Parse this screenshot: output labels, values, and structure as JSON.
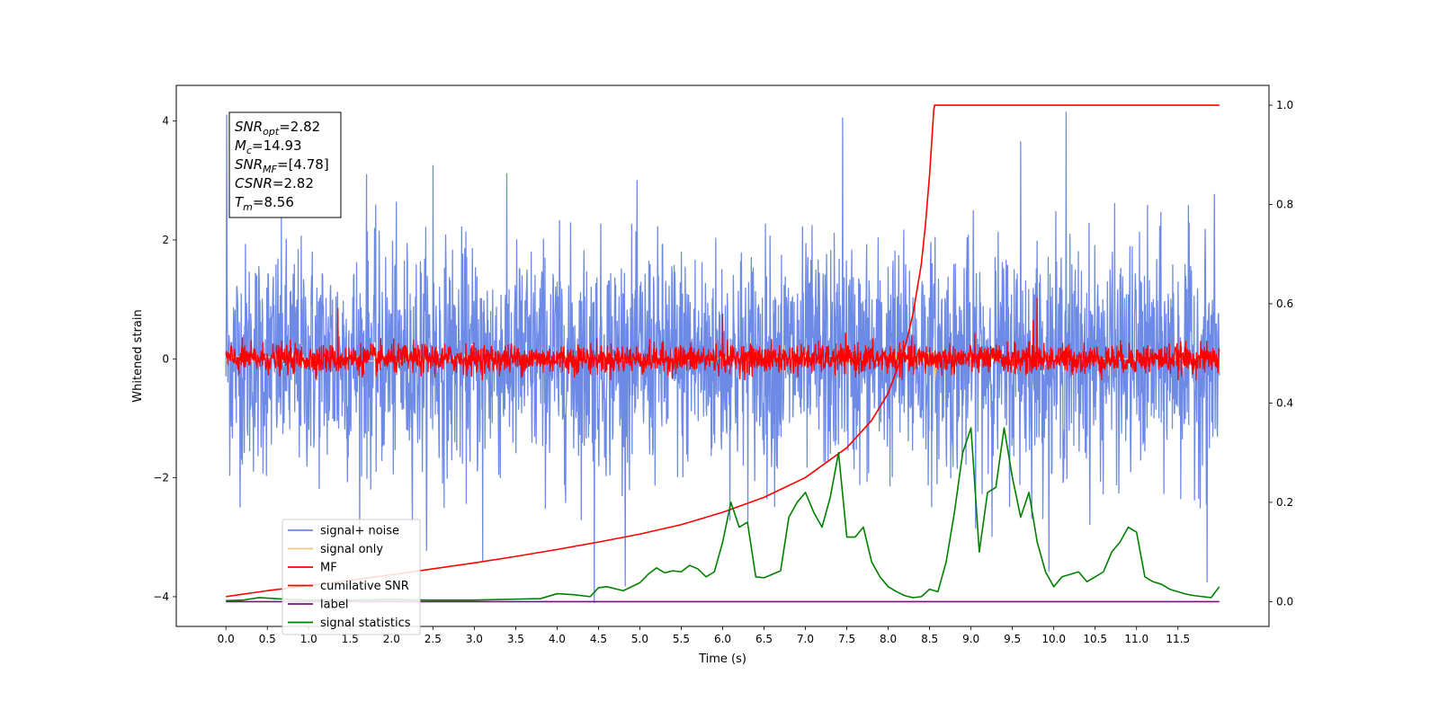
{
  "chart_data": {
    "type": "line",
    "xlabel": "Time (s)",
    "ylabel": "Whitened strain",
    "xlim": [
      -0.6,
      12.6
    ],
    "ylim": [
      -4.5,
      4.6
    ],
    "y2lim": [
      -0.05,
      1.04
    ],
    "x_ticks": [
      "0.0",
      "0.5",
      "1.0",
      "1.5",
      "2.0",
      "2.5",
      "3.0",
      "3.5",
      "4.0",
      "4.5",
      "5.0",
      "5.5",
      "6.0",
      "6.5",
      "7.0",
      "7.5",
      "8.0",
      "8.5",
      "9.0",
      "9.5",
      "10.0",
      "10.5",
      "11.0",
      "11.5"
    ],
    "y_ticks": [
      "4",
      "2",
      "0",
      "−2",
      "−4"
    ],
    "y2_ticks": [
      "1.0",
      "0.8",
      "0.6",
      "0.4",
      "0.2",
      "0.0"
    ],
    "legend_position": "lower-left",
    "annotation": {
      "lines": [
        {
          "base": "SNR",
          "sub": "opt",
          "value": "=2.82"
        },
        {
          "base": "M",
          "sub": "c",
          "value": "=14.93"
        },
        {
          "base": "SNR",
          "sub": "MF",
          "value": "=[4.78]"
        },
        {
          "base": "CSNR",
          "sub": "",
          "value": "=2.82"
        },
        {
          "base": "T",
          "sub": "m",
          "value": "=8.56"
        }
      ]
    },
    "series": [
      {
        "name": "signal+ noise",
        "color": "#6d8ae6",
        "axis": "left",
        "kind": "noise",
        "x_range": [
          0.0,
          12.0
        ],
        "amplitude_std": 0.95,
        "peak_max": 4.15,
        "peak_min": -4.1
      },
      {
        "name": "signal only",
        "color": "#f5c77e",
        "axis": "left",
        "kind": "chirp",
        "x_range": [
          0.0,
          12.0
        ],
        "merger_time": 8.56
      },
      {
        "name": "MF",
        "color": "#ff0000",
        "axis": "left",
        "kind": "noise",
        "x_range": [
          0.0,
          12.0
        ],
        "amplitude_std": 0.12,
        "peak_max": 1.0,
        "peak_min": -0.35
      },
      {
        "name": "cumilative SNR",
        "color": "#ff0000",
        "axis": "right",
        "x": [
          0.0,
          0.5,
          1.0,
          1.5,
          2.0,
          2.5,
          3.0,
          3.5,
          4.0,
          4.5,
          5.0,
          5.5,
          6.0,
          6.5,
          7.0,
          7.5,
          7.8,
          8.0,
          8.2,
          8.3,
          8.4,
          8.45,
          8.5,
          8.55,
          8.56,
          9.0,
          10.0,
          11.0,
          12.0
        ],
        "y": [
          0.01,
          0.022,
          0.032,
          0.043,
          0.054,
          0.066,
          0.078,
          0.091,
          0.105,
          0.12,
          0.136,
          0.155,
          0.18,
          0.21,
          0.25,
          0.31,
          0.365,
          0.42,
          0.51,
          0.58,
          0.68,
          0.76,
          0.86,
          0.99,
          1.0,
          1.0,
          1.0,
          1.0,
          1.0
        ]
      },
      {
        "name": "label",
        "color": "#7b0e7b",
        "axis": "right",
        "x": [
          0.0,
          12.0
        ],
        "y": [
          0.0,
          0.0
        ]
      },
      {
        "name": "signal statistics",
        "color": "#008000",
        "axis": "right",
        "x": [
          0.0,
          0.2,
          0.4,
          0.6,
          0.8,
          1.0,
          1.5,
          2.0,
          2.5,
          3.0,
          3.5,
          3.8,
          4.0,
          4.2,
          4.4,
          4.5,
          4.6,
          4.8,
          5.0,
          5.1,
          5.2,
          5.3,
          5.4,
          5.5,
          5.6,
          5.7,
          5.8,
          5.9,
          6.0,
          6.1,
          6.2,
          6.3,
          6.4,
          6.5,
          6.6,
          6.7,
          6.8,
          6.9,
          7.0,
          7.1,
          7.2,
          7.3,
          7.4,
          7.5,
          7.6,
          7.7,
          7.8,
          7.9,
          8.0,
          8.1,
          8.2,
          8.3,
          8.4,
          8.5,
          8.6,
          8.7,
          8.8,
          8.9,
          9.0,
          9.1,
          9.2,
          9.3,
          9.4,
          9.5,
          9.6,
          9.7,
          9.8,
          9.9,
          10.0,
          10.1,
          10.2,
          10.3,
          10.4,
          10.5,
          10.6,
          10.7,
          10.8,
          10.9,
          11.0,
          11.1,
          11.2,
          11.3,
          11.4,
          11.5,
          11.6,
          11.7,
          11.8,
          11.9,
          12.0
        ],
        "y": [
          0.002,
          0.003,
          0.008,
          0.006,
          0.004,
          0.003,
          0.003,
          0.004,
          0.003,
          0.003,
          0.005,
          0.006,
          0.016,
          0.014,
          0.01,
          0.028,
          0.03,
          0.022,
          0.038,
          0.055,
          0.068,
          0.058,
          0.062,
          0.06,
          0.073,
          0.066,
          0.05,
          0.06,
          0.12,
          0.2,
          0.15,
          0.16,
          0.05,
          0.048,
          0.055,
          0.062,
          0.17,
          0.2,
          0.22,
          0.18,
          0.15,
          0.21,
          0.3,
          0.13,
          0.13,
          0.15,
          0.08,
          0.05,
          0.03,
          0.02,
          0.012,
          0.008,
          0.01,
          0.025,
          0.02,
          0.08,
          0.18,
          0.3,
          0.35,
          0.1,
          0.22,
          0.23,
          0.35,
          0.25,
          0.17,
          0.22,
          0.12,
          0.06,
          0.03,
          0.05,
          0.055,
          0.06,
          0.04,
          0.05,
          0.06,
          0.1,
          0.12,
          0.15,
          0.14,
          0.05,
          0.04,
          0.035,
          0.025,
          0.02,
          0.015,
          0.012,
          0.01,
          0.008,
          0.03
        ]
      }
    ]
  }
}
